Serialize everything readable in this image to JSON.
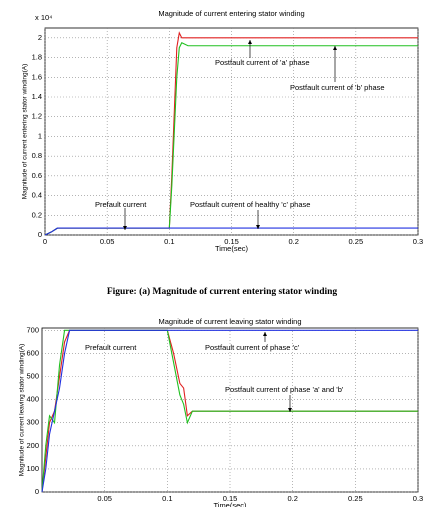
{
  "chart_data": [
    {
      "type": "line",
      "title": "Magnitude of current entering stator winding",
      "x_label": "Time(sec)",
      "y_label": "Magnitude of current entering stator winding(A)",
      "y_scale_label": "x 10⁴",
      "x": [
        0,
        0.005,
        0.01,
        0.1,
        0.102,
        0.106,
        0.108,
        0.11,
        0.115,
        0.3
      ],
      "series": [
        {
          "name": "Postfault current of 'a' phase",
          "color": "#e02020",
          "values": [
            0,
            0.03,
            0.07,
            0.07,
            0.6,
            1.9,
            2.05,
            2.0,
            2.0,
            2.0
          ]
        },
        {
          "name": "Postfault current of 'b' phase",
          "color": "#20c020",
          "values": [
            0,
            0.03,
            0.07,
            0.07,
            0.5,
            1.6,
            1.9,
            1.95,
            1.92,
            1.92
          ]
        },
        {
          "name": "Postfault current of healthy 'c' phase",
          "color": "#2030e0",
          "values": [
            0,
            0.03,
            0.07,
            0.07,
            0.07,
            0.07,
            0.07,
            0.07,
            0.07,
            0.07
          ]
        }
      ],
      "annotations": [
        "Prefault current",
        "Postfault current of 'a' phase",
        "Postfault current of 'b' phase",
        "Postfault current of healthy 'c' phase"
      ],
      "xlim": [
        0,
        0.3
      ],
      "xticks": [
        0,
        0.05,
        0.1,
        0.15,
        0.2,
        0.25,
        0.3
      ],
      "ylim": [
        0,
        2.1
      ],
      "yticks": [
        0,
        0.2,
        0.4,
        0.6,
        0.8,
        1,
        1.2,
        1.4,
        1.6,
        1.8,
        2
      ],
      "grid": true
    },
    {
      "type": "line",
      "title": "Magnitude of current leaving stator winding",
      "x_label": "Time(sec)",
      "y_label": "Magnitude of current leaving stator winding(A)",
      "x": [
        0,
        0.003,
        0.006,
        0.01,
        0.014,
        0.018,
        0.022,
        0.1,
        0.105,
        0.11,
        0.113,
        0.116,
        0.12,
        0.3
      ],
      "series": [
        {
          "name": "Postfault current of phase 'a'",
          "color": "#e02020",
          "values": [
            0,
            150,
            300,
            350,
            500,
            650,
            700,
            700,
            600,
            470,
            450,
            330,
            350,
            350
          ]
        },
        {
          "name": "Postfault current of phase 'b'",
          "color": "#20c020",
          "values": [
            0,
            200,
            330,
            300,
            550,
            700,
            700,
            700,
            560,
            420,
            380,
            300,
            350,
            350
          ]
        },
        {
          "name": "Postfault current of phase 'c'",
          "color": "#2030e0",
          "values": [
            0,
            100,
            250,
            350,
            450,
            600,
            700,
            700,
            700,
            700,
            700,
            700,
            700,
            700
          ]
        }
      ],
      "annotations": [
        "Prefault current",
        "Postfault current of phase 'c'",
        "Postfault current of phase 'a' and 'b'"
      ],
      "xlim": [
        0,
        0.3
      ],
      "xticks": [
        0.05,
        0.1,
        0.15,
        0.2,
        0.25,
        0.3
      ],
      "ylim": [
        0,
        710
      ],
      "yticks": [
        0,
        100,
        200,
        300,
        400,
        500,
        600,
        700
      ],
      "grid": true
    }
  ],
  "caption": "Figure: (a) Magnitude of current entering stator winding"
}
